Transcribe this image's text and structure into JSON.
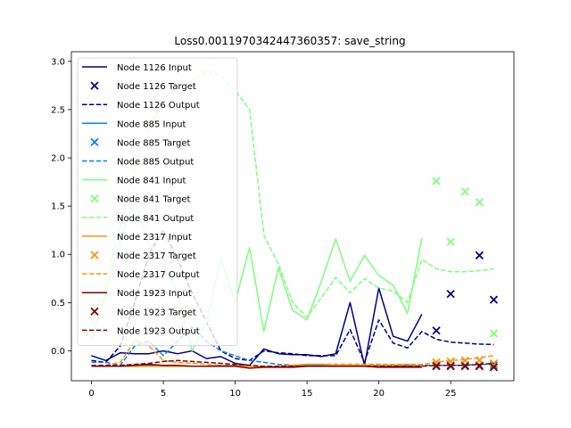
{
  "chart_data": {
    "type": "line",
    "title": "Loss0.0011970342447360357: save_string",
    "xlabel": "",
    "ylabel": "",
    "xlim": [
      -1.4,
      29.4
    ],
    "ylim": [
      -0.31,
      3.1
    ],
    "xticks": [
      "0",
      "5",
      "10",
      "15",
      "20",
      "25"
    ],
    "yticks": [
      "0.0",
      "0.5",
      "1.0",
      "1.5",
      "2.0",
      "2.5",
      "3.0"
    ],
    "grid": false,
    "legend_position": "upper-left",
    "series": [
      {
        "name": "Node 1126 Input",
        "kind": "line",
        "color": "#00007f",
        "dash": "solid",
        "x": [
          0,
          1,
          2,
          3,
          4,
          5,
          6,
          7,
          8,
          9,
          10,
          11,
          12,
          13,
          14,
          15,
          16,
          17,
          18,
          19,
          20,
          21,
          22,
          23
        ],
        "y": [
          -0.05,
          -0.1,
          -0.02,
          -0.03,
          -0.03,
          0.0,
          -0.03,
          0.0,
          -0.08,
          -0.06,
          -0.13,
          -0.15,
          0.02,
          -0.03,
          -0.04,
          -0.04,
          -0.06,
          -0.03,
          0.5,
          -0.15,
          0.65,
          0.15,
          0.1,
          0.38
        ]
      },
      {
        "name": "Node 1126 Target",
        "kind": "marker",
        "color": "#00007f",
        "x": [
          24,
          25,
          27,
          28
        ],
        "y": [
          0.21,
          0.59,
          0.99,
          0.53
        ]
      },
      {
        "name": "Node 1126 Output",
        "kind": "line",
        "color": "#00007f",
        "dash": "dashed",
        "x": [
          0,
          1,
          2,
          3,
          4,
          5,
          6,
          7,
          8,
          9,
          10,
          11,
          12,
          13,
          14,
          15,
          16,
          17,
          18,
          19,
          20,
          21,
          22,
          23,
          24,
          25,
          26,
          27,
          28
        ],
        "y": [
          -0.1,
          -0.12,
          0.05,
          0.5,
          1.0,
          1.25,
          0.95,
          0.6,
          0.3,
          0.0,
          -0.08,
          -0.1,
          0.0,
          -0.02,
          -0.03,
          -0.05,
          -0.05,
          -0.05,
          0.22,
          -0.12,
          0.32,
          0.08,
          0.03,
          0.2,
          0.12,
          0.09,
          0.08,
          0.07,
          0.065
        ]
      },
      {
        "name": "Node 885 Input",
        "kind": "line",
        "color": "#0080ff",
        "dash": "solid",
        "x": [
          0,
          1,
          2,
          3,
          4,
          5,
          6,
          7,
          8,
          9,
          10,
          11,
          12,
          13,
          14,
          15,
          16,
          17,
          18,
          19,
          20,
          21,
          22,
          23
        ],
        "y": [
          -0.16,
          -0.16,
          -0.16,
          -0.15,
          -0.15,
          -0.15,
          -0.16,
          -0.16,
          -0.16,
          -0.15,
          -0.15,
          -0.16,
          -0.16,
          -0.16,
          -0.16,
          -0.15,
          -0.15,
          -0.15,
          -0.15,
          -0.16,
          -0.16,
          -0.16,
          -0.16,
          -0.16
        ]
      },
      {
        "name": "Node 885 Target",
        "kind": "marker",
        "color": "#0080ff",
        "x": [
          24,
          25,
          26,
          27,
          28
        ],
        "y": [
          -0.15,
          -0.15,
          -0.15,
          -0.15,
          -0.15
        ]
      },
      {
        "name": "Node 885 Output",
        "kind": "line",
        "color": "#0080ff",
        "dash": "dashed",
        "x": [
          0,
          1,
          2,
          3,
          4,
          5,
          6,
          7,
          8,
          9,
          10,
          11,
          12,
          13,
          14,
          15,
          16,
          17,
          18,
          19,
          20,
          21,
          22,
          23,
          24,
          25,
          26,
          27,
          28
        ],
        "y": [
          -0.12,
          -0.12,
          -0.15,
          0.05,
          0.1,
          -0.05,
          0.1,
          0.25,
          0.1,
          0.0,
          -0.05,
          -0.1,
          -0.12,
          -0.14,
          -0.15,
          -0.14,
          -0.14,
          -0.14,
          -0.14,
          -0.14,
          -0.14,
          -0.15,
          -0.15,
          -0.15,
          -0.15,
          -0.15,
          -0.15,
          -0.14,
          -0.14
        ]
      },
      {
        "name": "Node 841 Input",
        "kind": "line",
        "color": "#7dff7a",
        "dash": "solid",
        "x": [
          0,
          1,
          2,
          3,
          4,
          5,
          6,
          7,
          8,
          9,
          10,
          11,
          12,
          13,
          14,
          15,
          16,
          17,
          18,
          19,
          20,
          21,
          22,
          23
        ],
        "y": [
          0.1,
          0.6,
          1.15,
          1.55,
          1.1,
          0.9,
          0.6,
          0.0,
          0.3,
          0.95,
          0.5,
          1.07,
          0.2,
          0.86,
          0.42,
          0.32,
          0.72,
          1.16,
          0.72,
          0.99,
          0.78,
          0.68,
          0.39,
          1.17
        ]
      },
      {
        "name": "Node 841 Target",
        "kind": "marker",
        "color": "#7dff7a",
        "x": [
          24,
          25,
          26,
          27,
          28
        ],
        "y": [
          1.76,
          1.13,
          1.65,
          1.54,
          0.18
        ]
      },
      {
        "name": "Node 841 Output",
        "kind": "line",
        "color": "#7dff7a",
        "dash": "dashed",
        "x": [
          0,
          1,
          2,
          3,
          4,
          5,
          6,
          7,
          8,
          9,
          10,
          11,
          12,
          13,
          14,
          15,
          16,
          17,
          18,
          19,
          20,
          21,
          22,
          23,
          24,
          25,
          26,
          27,
          28
        ],
        "y": [
          0.3,
          0.7,
          1.3,
          1.9,
          2.3,
          2.6,
          2.75,
          2.8,
          2.9,
          2.85,
          2.7,
          2.5,
          1.2,
          0.9,
          0.5,
          0.35,
          0.55,
          0.76,
          0.6,
          0.75,
          0.65,
          0.62,
          0.5,
          0.95,
          0.85,
          0.82,
          0.82,
          0.83,
          0.85
        ]
      },
      {
        "name": "Node 2317 Input",
        "kind": "line",
        "color": "#ff9400",
        "dash": "solid",
        "x": [
          0,
          1,
          2,
          3,
          4,
          5,
          6,
          7,
          8,
          9,
          10,
          11,
          12,
          13,
          14,
          15,
          16,
          17,
          18,
          19,
          20,
          21,
          22,
          23
        ],
        "y": [
          -0.16,
          -0.16,
          -0.16,
          -0.16,
          -0.16,
          -0.16,
          -0.16,
          -0.16,
          -0.16,
          -0.16,
          -0.16,
          -0.16,
          -0.16,
          -0.16,
          -0.15,
          -0.14,
          -0.14,
          -0.15,
          -0.15,
          -0.15,
          -0.15,
          -0.15,
          -0.14,
          -0.16
        ]
      },
      {
        "name": "Node 2317 Target",
        "kind": "marker",
        "color": "#ff9400",
        "x": [
          24,
          25,
          26,
          27,
          28
        ],
        "y": [
          -0.12,
          -0.11,
          -0.1,
          -0.1,
          -0.13
        ]
      },
      {
        "name": "Node 2317 Output",
        "kind": "line",
        "color": "#ff9400",
        "dash": "dashed",
        "x": [
          0,
          1,
          2,
          3,
          4,
          5,
          6,
          7,
          8,
          9,
          10,
          11,
          12,
          13,
          14,
          15,
          16,
          17,
          18,
          19,
          20,
          21,
          22,
          23,
          24,
          25,
          26,
          27,
          28
        ],
        "y": [
          -0.15,
          -0.15,
          -0.12,
          0.1,
          0.05,
          -0.1,
          -0.12,
          -0.13,
          -0.14,
          -0.15,
          -0.15,
          -0.16,
          -0.16,
          -0.16,
          -0.15,
          -0.14,
          -0.14,
          -0.14,
          -0.14,
          -0.14,
          -0.14,
          -0.14,
          -0.14,
          -0.14,
          -0.12,
          -0.1,
          -0.09,
          -0.07,
          -0.05
        ]
      },
      {
        "name": "Node 1923 Input",
        "kind": "line",
        "color": "#7f0000",
        "dash": "solid",
        "x": [
          0,
          1,
          2,
          3,
          4,
          5,
          6,
          7,
          8,
          9,
          10,
          11,
          12,
          13,
          14,
          15,
          16,
          17,
          18,
          19,
          20,
          21,
          22,
          23
        ],
        "y": [
          -0.16,
          -0.16,
          -0.16,
          -0.15,
          -0.14,
          -0.15,
          -0.15,
          -0.16,
          -0.16,
          -0.16,
          -0.16,
          -0.18,
          -0.17,
          -0.17,
          -0.17,
          -0.16,
          -0.16,
          -0.16,
          -0.16,
          -0.16,
          -0.17,
          -0.17,
          -0.17,
          -0.17
        ]
      },
      {
        "name": "Node 1923 Target",
        "kind": "marker",
        "color": "#7f0000",
        "x": [
          24,
          25,
          26,
          27,
          28
        ],
        "y": [
          -0.16,
          -0.16,
          -0.16,
          -0.16,
          -0.17
        ]
      },
      {
        "name": "Node 1923 Output",
        "kind": "line",
        "color": "#7f0000",
        "dash": "dashed",
        "x": [
          0,
          1,
          2,
          3,
          4,
          5,
          6,
          7,
          8,
          9,
          10,
          11,
          12,
          13,
          14,
          15,
          16,
          17,
          18,
          19,
          20,
          21,
          22,
          23,
          24,
          25,
          26,
          27,
          28
        ],
        "y": [
          -0.15,
          -0.15,
          -0.15,
          -0.14,
          -0.13,
          -0.11,
          -0.1,
          -0.11,
          -0.12,
          -0.13,
          -0.14,
          -0.15,
          -0.16,
          -0.16,
          -0.16,
          -0.16,
          -0.16,
          -0.16,
          -0.16,
          -0.16,
          -0.16,
          -0.16,
          -0.16,
          -0.16,
          -0.15,
          -0.15,
          -0.15,
          -0.14,
          -0.13
        ]
      }
    ]
  }
}
